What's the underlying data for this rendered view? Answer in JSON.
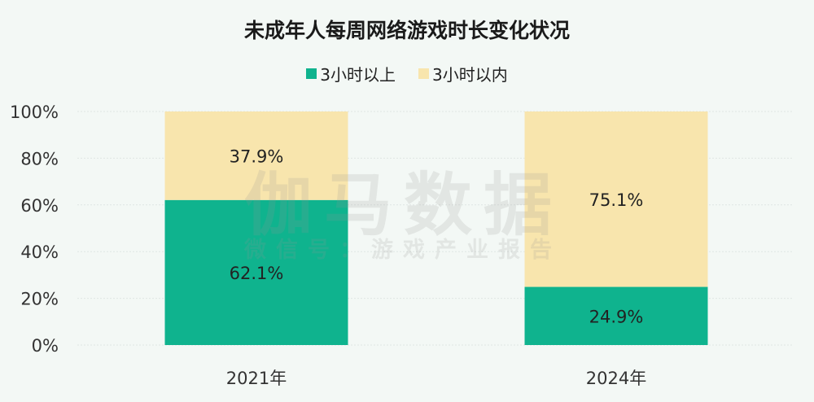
{
  "chart_data": {
    "type": "bar",
    "stacked": true,
    "title": "未成年人每周网络游戏时长变化状况",
    "categories": [
      "2021年",
      "2024年"
    ],
    "series": [
      {
        "name": "3小时以上",
        "values": [
          62.1,
          24.9
        ],
        "labels": [
          "62.1%",
          "24.9%"
        ],
        "color": "#0fb38e"
      },
      {
        "name": "3小时以内",
        "values": [
          37.9,
          75.1
        ],
        "labels": [
          "37.9%",
          "75.1%"
        ],
        "color": "#f8e5ad"
      }
    ],
    "ylim": [
      0,
      100
    ],
    "yticks": [
      "0%",
      "20%",
      "40%",
      "60%",
      "80%",
      "100%"
    ],
    "legend": "top-center",
    "grid": true
  },
  "watermark": {
    "main": "伽马数据",
    "sub": "微信号：游戏产业报告"
  }
}
